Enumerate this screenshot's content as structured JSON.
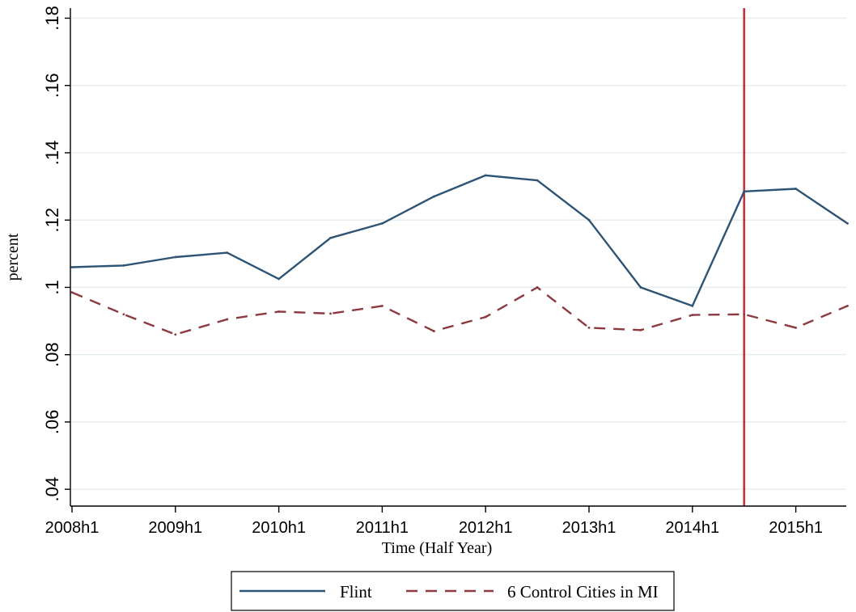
{
  "chart_data": {
    "type": "line",
    "title": "",
    "xlabel": "Time (Half Year)",
    "ylabel": "percent",
    "x": [
      "2008h1",
      "2008h2",
      "2009h1",
      "2009h2",
      "2010h1",
      "2010h2",
      "2011h1",
      "2011h2",
      "2012h1",
      "2012h2",
      "2013h1",
      "2013h2",
      "2014h1",
      "2014h2",
      "2015h1",
      "2015h2"
    ],
    "x_tick_labels": [
      "2008h1",
      "2009h1",
      "2010h1",
      "2011h1",
      "2012h1",
      "2013h1",
      "2014h1",
      "2015h1"
    ],
    "y_tick_labels": [
      ".04",
      ".06",
      ".08",
      ".1",
      ".12",
      ".14",
      ".16",
      ".18"
    ],
    "y_ticks": [
      0.04,
      0.06,
      0.08,
      0.1,
      0.12,
      0.14,
      0.16,
      0.18
    ],
    "ylim": [
      0.035,
      0.183
    ],
    "grid": true,
    "legend_position": "bottom",
    "vertical_line": {
      "x": "2014h2",
      "color": "#c8323c"
    },
    "series": [
      {
        "name": "Flint",
        "style": "solid",
        "color": "#2e5475",
        "values": [
          0.106,
          0.1065,
          0.109,
          0.1103,
          0.1025,
          0.1147,
          0.119,
          0.127,
          0.1333,
          0.1318,
          0.12,
          0.1,
          0.0945,
          0.1285,
          0.1293,
          0.119
        ]
      },
      {
        "name": "6 Control Cities in MI",
        "style": "dashed",
        "color": "#8c3a3f",
        "values": [
          0.0985,
          0.092,
          0.086,
          0.0905,
          0.0928,
          0.0922,
          0.0945,
          0.087,
          0.0912,
          0.1,
          0.088,
          0.0873,
          0.0918,
          0.092,
          0.088,
          0.0945
        ]
      }
    ]
  }
}
